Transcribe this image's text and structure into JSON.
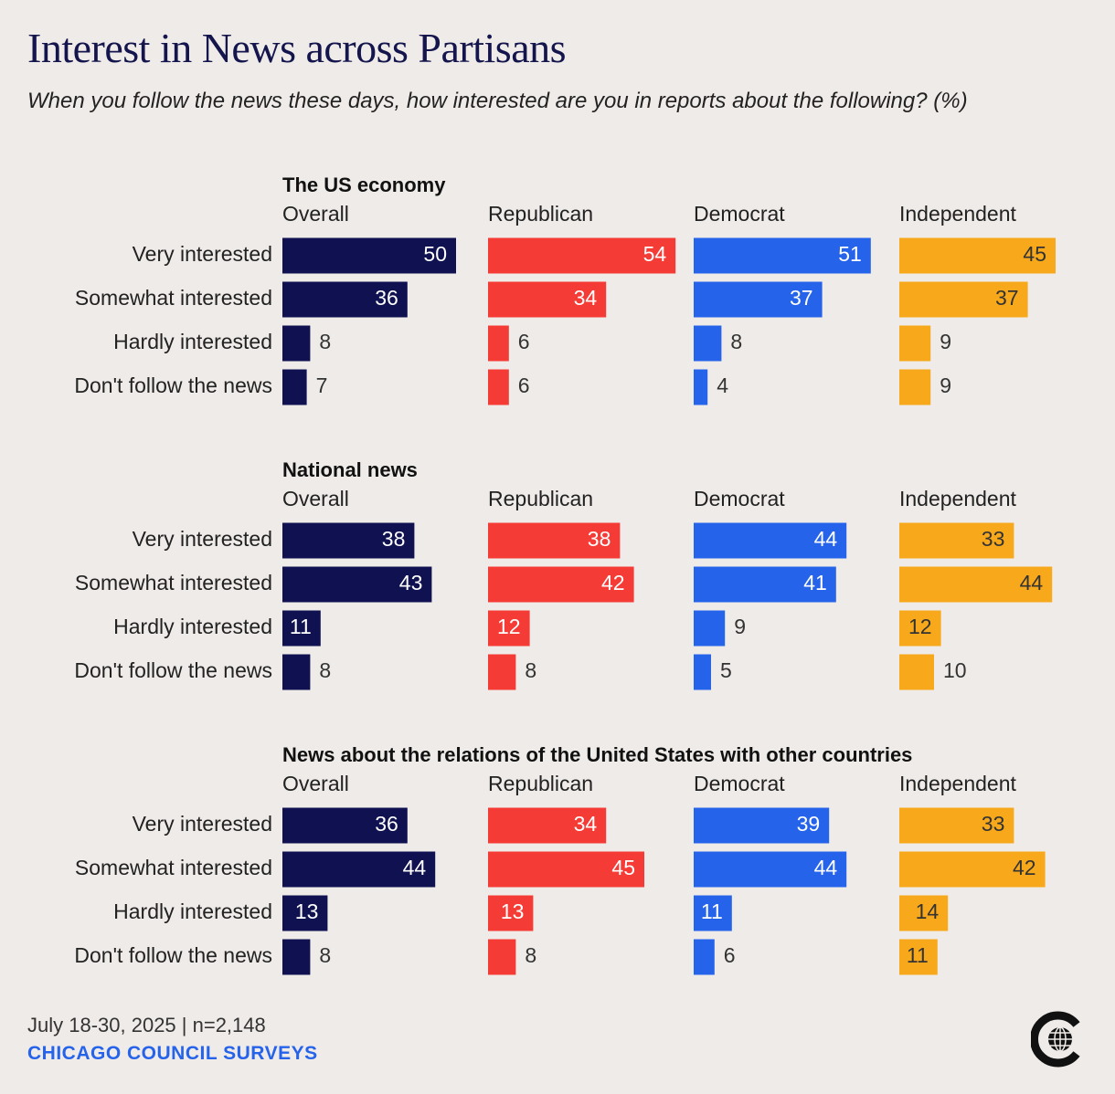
{
  "title": "Interest in News across Partisans",
  "subtitle": "When you follow the news these days, how interested are you in reports about the following? (%)",
  "footer": {
    "date": "July 18-30, 2025 | n=2,148",
    "source": "CHICAGO COUNCIL SURVEYS"
  },
  "logo": {
    "icon": "globe-icon"
  },
  "colors": {
    "Overall": "#0f1150",
    "Republican": "#f53b36",
    "Democrat": "#2563eb",
    "Independent": "#f8a81b",
    "label_light": "#ffffff",
    "label_dark": "#333333"
  },
  "chart_data": {
    "type": "bar",
    "orientation": "horizontal",
    "unit": "%",
    "categories": [
      "Very interested",
      "Somewhat interested",
      "Hardly interested",
      "Don't follow the news"
    ],
    "groups": [
      "Overall",
      "Republican",
      "Democrat",
      "Independent"
    ],
    "panels": [
      {
        "title": "The US economy",
        "series": [
          {
            "name": "Overall",
            "values": [
              50,
              36,
              8,
              7
            ]
          },
          {
            "name": "Republican",
            "values": [
              54,
              34,
              6,
              6
            ]
          },
          {
            "name": "Democrat",
            "values": [
              51,
              37,
              8,
              4
            ]
          },
          {
            "name": "Independent",
            "values": [
              45,
              37,
              9,
              9
            ]
          }
        ]
      },
      {
        "title": "National news",
        "series": [
          {
            "name": "Overall",
            "values": [
              38,
              43,
              11,
              8
            ]
          },
          {
            "name": "Republican",
            "values": [
              38,
              42,
              12,
              8
            ]
          },
          {
            "name": "Democrat",
            "values": [
              44,
              41,
              9,
              5
            ]
          },
          {
            "name": "Independent",
            "values": [
              33,
              44,
              12,
              10
            ]
          }
        ]
      },
      {
        "title": "News about the relations of the United States with other countries",
        "series": [
          {
            "name": "Overall",
            "values": [
              36,
              44,
              13,
              8
            ]
          },
          {
            "name": "Republican",
            "values": [
              34,
              45,
              13,
              8
            ]
          },
          {
            "name": "Democrat",
            "values": [
              39,
              44,
              11,
              6
            ]
          },
          {
            "name": "Independent",
            "values": [
              33,
              42,
              14,
              11
            ]
          }
        ]
      }
    ]
  }
}
